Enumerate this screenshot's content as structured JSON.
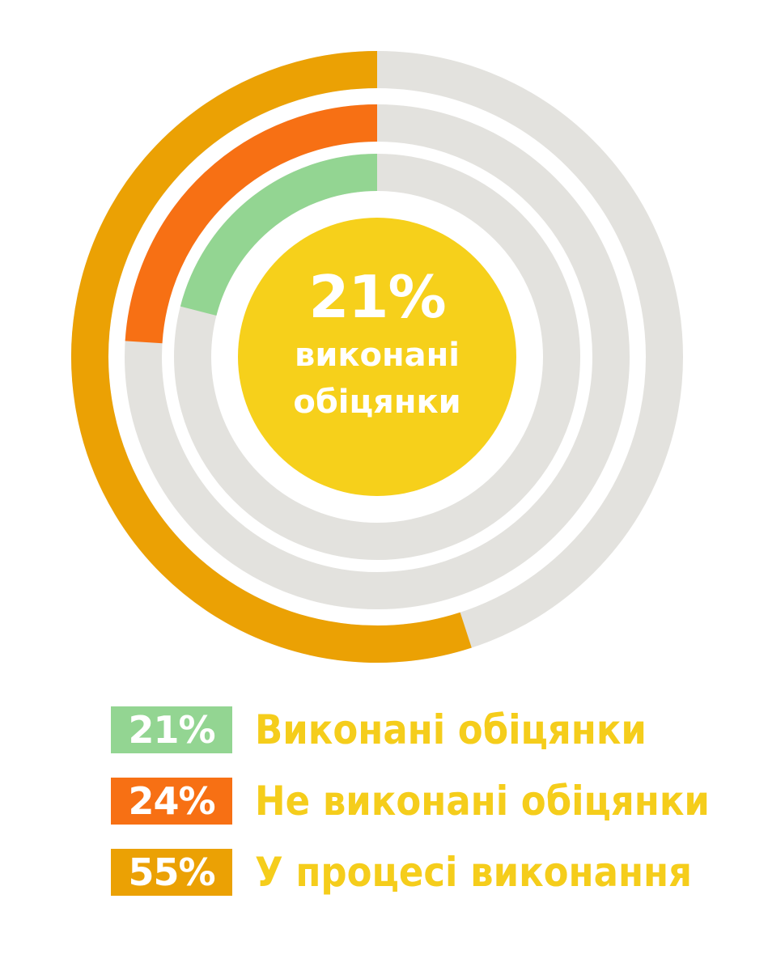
{
  "chart_data": {
    "type": "pie",
    "title": "",
    "center": {
      "value": "21%",
      "label": "виконані обіцянки"
    },
    "series": [
      {
        "name": "У процесі виконання",
        "value": 55,
        "label": "55%",
        "color": "#eba104"
      },
      {
        "name": "Не виконані обіцянки",
        "value": 24,
        "label": "24%",
        "color": "#f77014"
      },
      {
        "name": "Виконані обіцянки",
        "value": 21,
        "label": "21%",
        "color": "#93d592"
      }
    ],
    "track_color": "#e3e2de",
    "center_color": "#f6d01b"
  },
  "legend": [
    {
      "value": "21%",
      "label": "Виконані обіцянки",
      "color": "#93d592"
    },
    {
      "value": "24%",
      "label": "Не виконані обіцянки",
      "color": "#f77014"
    },
    {
      "value": "55%",
      "label": "У процесі виконання",
      "color": "#eba104"
    }
  ]
}
